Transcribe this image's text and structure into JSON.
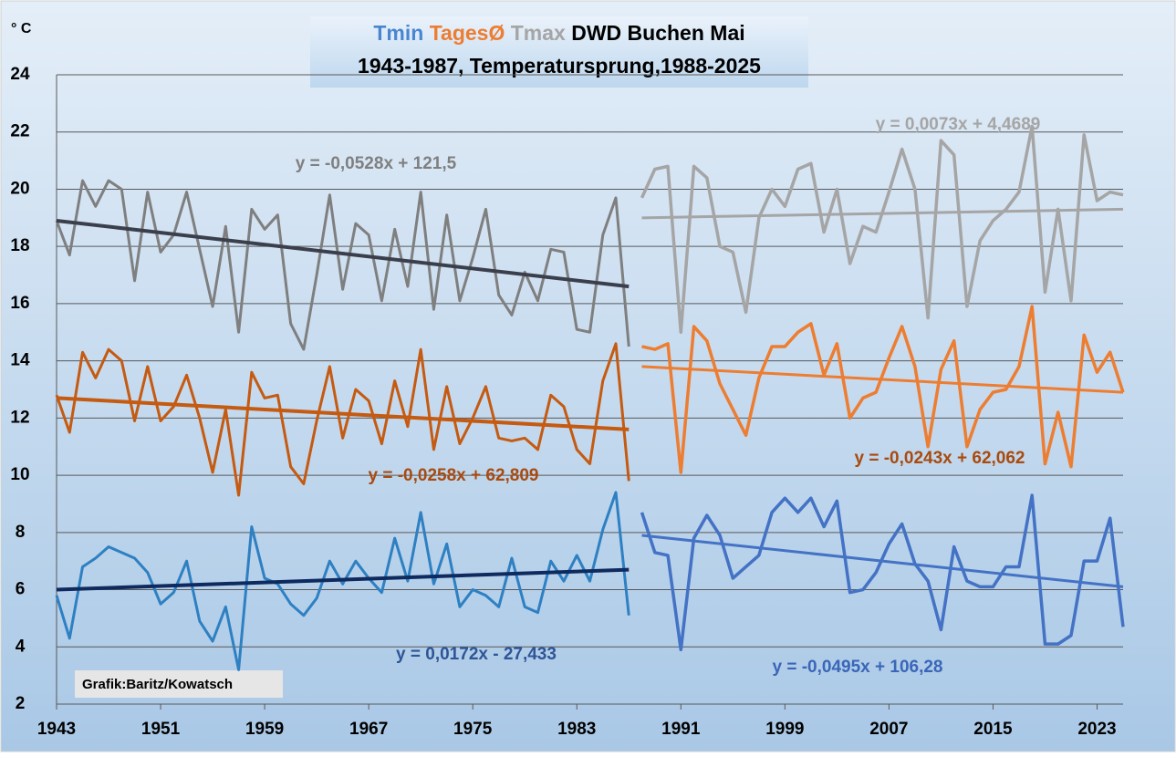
{
  "chart_data": {
    "type": "line",
    "title_parts": [
      {
        "text": "Tmin",
        "color": "#4a86d0"
      },
      {
        "text": "TagesØ",
        "color": "#ed7d31"
      },
      {
        "text": "Tmax",
        "color": "#a5a5a5"
      },
      {
        "text": "DWD Buchen Mai",
        "color": "#000000"
      }
    ],
    "subtitle": "1943-1987, Temperatursprung,1988-2025",
    "y_label": "° C",
    "credit": "Grafik:Baritz/Kowatsch",
    "xlim": [
      1943,
      2025
    ],
    "xticks": [
      1943,
      1951,
      1959,
      1967,
      1975,
      1983,
      1991,
      1999,
      2007,
      2015,
      2023
    ],
    "ylim": [
      2,
      24
    ],
    "yticks": [
      2,
      4,
      6,
      8,
      10,
      12,
      14,
      16,
      18,
      20,
      22,
      24
    ],
    "grid": true,
    "series": [
      {
        "color": "#7f7f7f",
        "width": 3,
        "x": [
          1943,
          1944,
          1945,
          1946,
          1947,
          1948,
          1949,
          1950,
          1951,
          1952,
          1953,
          1954,
          1955,
          1956,
          1957,
          1958,
          1959,
          1960,
          1961,
          1962,
          1963,
          1964,
          1965,
          1966,
          1967,
          1968,
          1969,
          1970,
          1971,
          1972,
          1973,
          1974,
          1975,
          1976,
          1977,
          1978,
          1979,
          1980,
          1981,
          1982,
          1983,
          1984,
          1985,
          1986,
          1987
        ],
        "values": [
          18.9,
          17.7,
          20.3,
          19.4,
          20.3,
          20.0,
          16.8,
          19.9,
          17.8,
          18.4,
          19.9,
          17.9,
          15.9,
          18.7,
          15.0,
          19.3,
          18.6,
          19.1,
          15.3,
          14.4,
          17.0,
          19.8,
          16.5,
          18.8,
          18.4,
          16.1,
          18.6,
          16.6,
          19.9,
          15.8,
          19.1,
          16.1,
          17.6,
          19.3,
          16.3,
          15.6,
          17.1,
          16.1,
          17.9,
          17.8,
          15.1,
          15.0,
          18.4,
          19.7,
          14.5
        ]
      },
      {
        "color": "#a5a5a5",
        "width": 3.5,
        "x": [
          1988,
          1989,
          1990,
          1991,
          1992,
          1993,
          1994,
          1995,
          1996,
          1997,
          1998,
          1999,
          2000,
          2001,
          2002,
          2003,
          2004,
          2005,
          2006,
          2007,
          2008,
          2009,
          2010,
          2011,
          2012,
          2013,
          2014,
          2015,
          2016,
          2017,
          2018,
          2019,
          2020,
          2021,
          2022,
          2023,
          2024,
          2025
        ],
        "values": [
          19.7,
          20.7,
          20.8,
          15.0,
          20.8,
          20.4,
          18.0,
          17.8,
          15.7,
          19.0,
          20.0,
          19.4,
          20.7,
          20.9,
          18.5,
          20.0,
          17.4,
          18.7,
          18.5,
          19.9,
          21.4,
          20.0,
          15.5,
          21.7,
          21.2,
          15.9,
          18.2,
          18.9,
          19.3,
          19.9,
          22.2,
          16.4,
          19.3,
          16.1,
          21.9,
          19.6,
          19.9,
          19.8
        ]
      },
      {
        "color": "#c55a11",
        "width": 3,
        "x": [
          1943,
          1944,
          1945,
          1946,
          1947,
          1948,
          1949,
          1950,
          1951,
          1952,
          1953,
          1954,
          1955,
          1956,
          1957,
          1958,
          1959,
          1960,
          1961,
          1962,
          1963,
          1964,
          1965,
          1966,
          1967,
          1968,
          1969,
          1970,
          1971,
          1972,
          1973,
          1974,
          1975,
          1976,
          1977,
          1978,
          1979,
          1980,
          1981,
          1982,
          1983,
          1984,
          1985,
          1986,
          1987
        ],
        "values": [
          12.8,
          11.5,
          14.3,
          13.4,
          14.4,
          14.0,
          11.9,
          13.8,
          11.9,
          12.4,
          13.5,
          12.0,
          10.1,
          12.3,
          9.3,
          13.6,
          12.7,
          12.8,
          10.3,
          9.7,
          11.9,
          13.8,
          11.3,
          13.0,
          12.6,
          11.1,
          13.3,
          11.7,
          14.4,
          10.9,
          13.1,
          11.1,
          12.0,
          13.1,
          11.3,
          11.2,
          11.3,
          10.9,
          12.8,
          12.4,
          10.9,
          10.4,
          13.3,
          14.6,
          9.8
        ]
      },
      {
        "color": "#ed7d31",
        "width": 3.5,
        "x": [
          1988,
          1989,
          1990,
          1991,
          1992,
          1993,
          1994,
          1995,
          1996,
          1997,
          1998,
          1999,
          2000,
          2001,
          2002,
          2003,
          2004,
          2005,
          2006,
          2007,
          2008,
          2009,
          2010,
          2011,
          2012,
          2013,
          2014,
          2015,
          2016,
          2017,
          2018,
          2019,
          2020,
          2021,
          2022,
          2023,
          2024,
          2025
        ],
        "values": [
          14.5,
          14.4,
          14.6,
          10.1,
          15.2,
          14.7,
          13.2,
          12.3,
          11.4,
          13.4,
          14.5,
          14.5,
          15.0,
          15.3,
          13.5,
          14.6,
          12.0,
          12.7,
          12.9,
          14.1,
          15.2,
          13.8,
          11.0,
          13.7,
          14.7,
          11.0,
          12.3,
          12.9,
          13.0,
          13.8,
          15.9,
          10.4,
          12.2,
          10.3,
          14.9,
          13.6,
          14.3,
          12.9
        ]
      },
      {
        "color": "#2e80c2",
        "width": 3,
        "x": [
          1943,
          1944,
          1945,
          1946,
          1947,
          1948,
          1949,
          1950,
          1951,
          1952,
          1953,
          1954,
          1955,
          1956,
          1957,
          1958,
          1959,
          1960,
          1961,
          1962,
          1963,
          1964,
          1965,
          1966,
          1967,
          1968,
          1969,
          1970,
          1971,
          1972,
          1973,
          1974,
          1975,
          1976,
          1977,
          1978,
          1979,
          1980,
          1981,
          1982,
          1983,
          1984,
          1985,
          1986,
          1987
        ],
        "values": [
          5.8,
          4.3,
          6.8,
          7.1,
          7.5,
          7.3,
          7.1,
          6.6,
          5.5,
          5.9,
          7.0,
          4.9,
          4.2,
          5.4,
          3.2,
          8.2,
          6.4,
          6.2,
          5.5,
          5.1,
          5.7,
          7.0,
          6.2,
          7.0,
          6.4,
          5.9,
          7.8,
          6.3,
          8.7,
          6.2,
          7.6,
          5.4,
          6.0,
          5.8,
          5.4,
          7.1,
          5.4,
          5.2,
          7.0,
          6.3,
          7.2,
          6.3,
          8.1,
          9.4,
          5.1
        ]
      },
      {
        "color": "#4472c4",
        "width": 3.5,
        "x": [
          1988,
          1989,
          1990,
          1991,
          1992,
          1993,
          1994,
          1995,
          1996,
          1997,
          1998,
          1999,
          2000,
          2001,
          2002,
          2003,
          2004,
          2005,
          2006,
          2007,
          2008,
          2009,
          2010,
          2011,
          2012,
          2013,
          2014,
          2015,
          2016,
          2017,
          2018,
          2019,
          2020,
          2021,
          2022,
          2023,
          2024,
          2025
        ],
        "values": [
          8.7,
          7.3,
          7.2,
          3.9,
          7.8,
          8.6,
          7.9,
          6.4,
          6.8,
          7.2,
          8.7,
          9.2,
          8.7,
          9.2,
          8.2,
          9.1,
          5.9,
          6.0,
          6.6,
          7.6,
          8.3,
          6.9,
          6.3,
          4.6,
          7.5,
          6.3,
          6.1,
          6.1,
          6.8,
          6.8,
          9.3,
          4.1,
          4.1,
          4.4,
          7.0,
          7.0,
          8.5,
          4.7
        ]
      },
      {
        "color": "#3a3f4b",
        "width": 4,
        "x": [
          1943,
          1987
        ],
        "values": [
          18.9,
          16.6
        ]
      },
      {
        "color": "#a5a5a5",
        "width": 3,
        "x": [
          1988,
          2025
        ],
        "values": [
          19.0,
          19.3
        ]
      },
      {
        "color": "#c55a11",
        "width": 4,
        "x": [
          1943,
          1987
        ],
        "values": [
          12.7,
          11.6
        ]
      },
      {
        "color": "#ed7d31",
        "width": 3,
        "x": [
          1988,
          2025
        ],
        "values": [
          13.8,
          12.9
        ]
      },
      {
        "color": "#0e2a5e",
        "width": 4,
        "x": [
          1943,
          1987
        ],
        "values": [
          6.0,
          6.7
        ]
      },
      {
        "color": "#4472c4",
        "width": 3,
        "x": [
          1988,
          2025
        ],
        "values": [
          7.9,
          6.1
        ]
      }
    ],
    "annotations": [
      {
        "text": "y = -0,0528x + 121,5",
        "color": "#7f7f7f"
      },
      {
        "text": "y = 0,0073x + 4,4689",
        "color": "#a5a5a5"
      },
      {
        "text": "y = -0,0258x + 62,809",
        "color": "#a94a0e"
      },
      {
        "text": "y = -0,0243x + 62,062",
        "color": "#a94a0e"
      },
      {
        "text": "y = 0,0172x - 27,433",
        "color": "#2f5597"
      },
      {
        "text": "y = -0,0495x + 106,28",
        "color": "#3a66b8"
      }
    ]
  }
}
